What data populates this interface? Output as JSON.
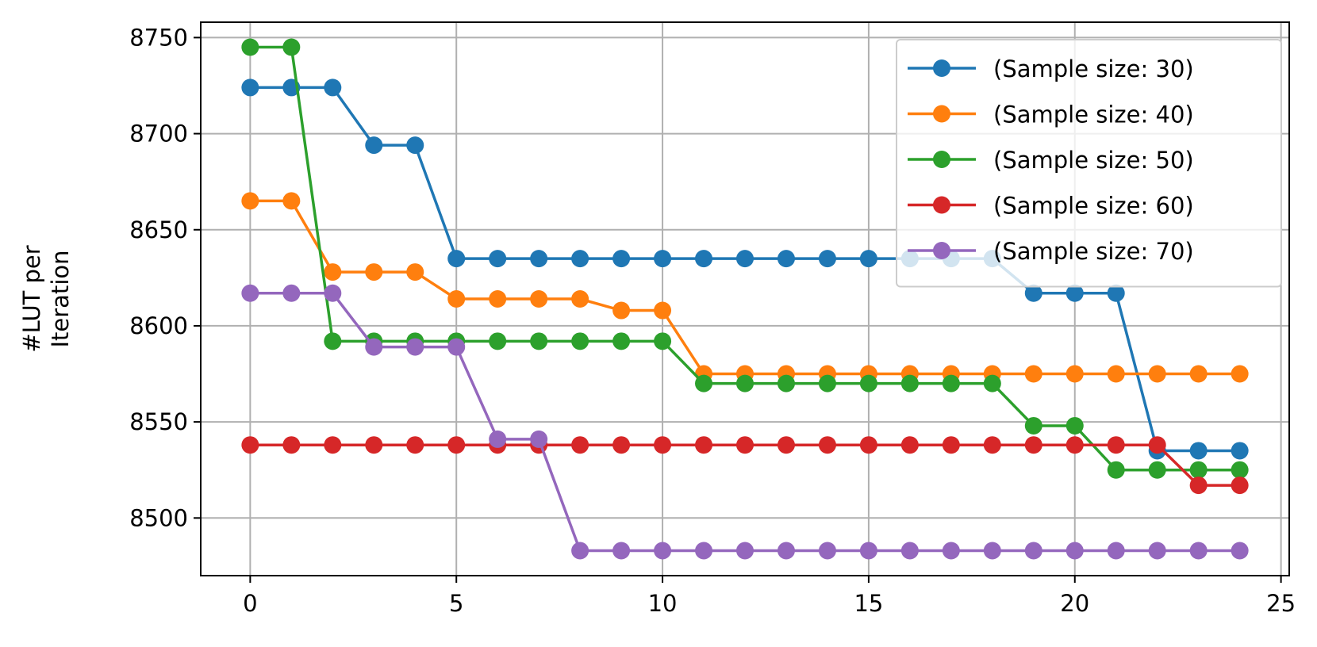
{
  "chart_data": {
    "type": "line",
    "ylabel": [
      "#LUT per",
      "Iteration"
    ],
    "x": [
      0,
      1,
      2,
      3,
      4,
      5,
      6,
      7,
      8,
      9,
      10,
      11,
      12,
      13,
      14,
      15,
      16,
      17,
      18,
      19,
      20,
      21,
      22,
      23,
      24
    ],
    "xlim": [
      -1.2,
      25.2
    ],
    "xticks": [
      0,
      5,
      10,
      15,
      20,
      25
    ],
    "ylim": [
      8470,
      8758
    ],
    "yticks": [
      8500,
      8550,
      8600,
      8650,
      8700,
      8750
    ],
    "grid": true,
    "legend": "upper right",
    "series": [
      {
        "name": "(Sample size: 30)",
        "color": "#1f77b4",
        "values": [
          8724,
          8724,
          8724,
          8694,
          8694,
          8635,
          8635,
          8635,
          8635,
          8635,
          8635,
          8635,
          8635,
          8635,
          8635,
          8635,
          8635,
          8635,
          8635,
          8617,
          8617,
          8617,
          8535,
          8535,
          8535
        ]
      },
      {
        "name": "(Sample size: 40)",
        "color": "#ff7f0e",
        "values": [
          8665,
          8665,
          8628,
          8628,
          8628,
          8614,
          8614,
          8614,
          8614,
          8608,
          8608,
          8575,
          8575,
          8575,
          8575,
          8575,
          8575,
          8575,
          8575,
          8575,
          8575,
          8575,
          8575,
          8575,
          8575
        ]
      },
      {
        "name": "(Sample size: 50)",
        "color": "#2ca02c",
        "values": [
          8745,
          8745,
          8592,
          8592,
          8592,
          8592,
          8592,
          8592,
          8592,
          8592,
          8592,
          8570,
          8570,
          8570,
          8570,
          8570,
          8570,
          8570,
          8570,
          8548,
          8548,
          8525,
          8525,
          8525,
          8525
        ]
      },
      {
        "name": "(Sample size: 60)",
        "color": "#d62728",
        "values": [
          8538,
          8538,
          8538,
          8538,
          8538,
          8538,
          8538,
          8538,
          8538,
          8538,
          8538,
          8538,
          8538,
          8538,
          8538,
          8538,
          8538,
          8538,
          8538,
          8538,
          8538,
          8538,
          8538,
          8517,
          8517
        ]
      },
      {
        "name": "(Sample size: 70)",
        "color": "#9467bd",
        "values": [
          8617,
          8617,
          8617,
          8589,
          8589,
          8589,
          8541,
          8541,
          8483,
          8483,
          8483,
          8483,
          8483,
          8483,
          8483,
          8483,
          8483,
          8483,
          8483,
          8483,
          8483,
          8483,
          8483,
          8483,
          8483
        ]
      }
    ]
  }
}
